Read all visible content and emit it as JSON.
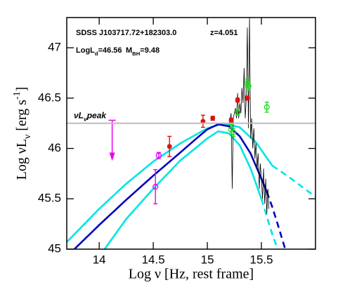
{
  "chart_data": {
    "type": "line",
    "xlabel": "Log ν [Hz, rest frame]",
    "ylabel": [
      "Log νL",
      "ν",
      " [erg s",
      "-1",
      "]"
    ],
    "annotations": [
      [
        "SDSS J103717.72+182303.0"
      ],
      [
        "z=4.051"
      ],
      [
        "LogL",
        "d",
        "=46.56"
      ],
      [
        "M",
        "BH",
        "=9.48"
      ]
    ],
    "reference_line": {
      "value": 46.25,
      "label": [
        "νL",
        "ν",
        "peak"
      ],
      "color": "#bbbbbb"
    },
    "xlim": [
      13.7,
      16.0
    ],
    "ylim": [
      45,
      47.3
    ],
    "xticks": [
      14,
      14.5,
      15,
      15.5
    ],
    "yticks": [
      45,
      45.5,
      46,
      46.5,
      47
    ],
    "series": [
      {
        "kind": "line",
        "color": "#00e5e5",
        "style": "solid",
        "x": [
          13.7,
          14.0,
          14.25,
          14.5,
          14.75,
          15.0,
          15.15,
          15.3,
          15.45,
          15.6
        ],
        "values": [
          45.07,
          45.4,
          45.65,
          45.87,
          46.05,
          46.2,
          46.25,
          46.21,
          46.06,
          45.83
        ]
      },
      {
        "kind": "line",
        "color": "#00e5e5",
        "style": "dashed",
        "x": [
          15.6,
          15.75,
          15.9,
          16.0
        ],
        "values": [
          45.83,
          45.72,
          45.6,
          45.52
        ]
      },
      {
        "kind": "line",
        "color": "#00e5e5",
        "style": "solid",
        "x": [
          14.05,
          14.25,
          14.5,
          14.75,
          15.0,
          15.1,
          15.2,
          15.3,
          15.4,
          15.5
        ],
        "values": [
          45.0,
          45.3,
          45.6,
          45.88,
          46.1,
          46.17,
          46.15,
          46.03,
          45.8,
          45.5
        ]
      },
      {
        "kind": "line",
        "color": "#00e5e5",
        "style": "dashed",
        "x": [
          15.5,
          15.6,
          15.65
        ],
        "values": [
          45.5,
          45.15,
          45.0
        ]
      },
      {
        "kind": "line",
        "color": "#0000bb",
        "style": "solid",
        "x": [
          13.77,
          14.0,
          14.25,
          14.5,
          14.75,
          14.9,
          15.0,
          15.1,
          15.2,
          15.3,
          15.4,
          15.5,
          15.55
        ],
        "values": [
          45.0,
          45.24,
          45.49,
          45.73,
          45.96,
          46.1,
          46.19,
          46.24,
          46.22,
          46.12,
          45.95,
          45.7,
          45.57
        ]
      },
      {
        "kind": "line",
        "color": "#0000bb",
        "style": "dashed",
        "x": [
          15.55,
          15.6,
          15.65,
          15.72
        ],
        "values": [
          45.57,
          45.42,
          45.25,
          45.0
        ]
      },
      {
        "kind": "line",
        "color": "#000000",
        "style": "thin",
        "x": [
          15.2,
          15.22,
          15.23,
          15.24,
          15.26,
          15.27,
          15.28,
          15.29,
          15.3,
          15.31,
          15.32,
          15.33,
          15.34,
          15.35,
          15.36,
          15.37,
          15.38,
          15.39,
          15.4,
          15.41,
          15.42,
          15.43,
          15.44,
          15.45,
          15.46,
          15.47,
          15.48,
          15.49,
          15.5,
          15.51,
          15.52,
          15.53,
          15.54,
          15.55,
          15.56,
          15.57
        ],
        "values": [
          46.2,
          46.35,
          45.6,
          46.3,
          46.4,
          46.3,
          46.55,
          46.3,
          46.45,
          46.35,
          46.6,
          46.45,
          46.8,
          46.3,
          46.5,
          47.2,
          46.2,
          47.3,
          46.1,
          46.3,
          46.0,
          46.2,
          45.9,
          46.05,
          45.8,
          45.95,
          45.6,
          45.85,
          45.7,
          45.5,
          45.8,
          45.45,
          45.7,
          45.35,
          45.6,
          45.4
        ]
      },
      {
        "kind": "points",
        "marker": "open",
        "color": "#ee00ee",
        "x": [
          14.52,
          14.55
        ],
        "values": [
          45.62,
          45.93
        ],
        "errors": [
          0.17,
          0.03
        ]
      },
      {
        "kind": "points",
        "marker": "filled",
        "color": "#dd1111",
        "x": [
          14.65,
          14.96,
          15.05,
          15.22,
          15.28,
          15.37
        ],
        "values": [
          46.02,
          46.27,
          46.3,
          46.28,
          46.48,
          46.5
        ],
        "errors": [
          0.1,
          0.06,
          0.02,
          0.02,
          0.02,
          0.02
        ]
      },
      {
        "kind": "points",
        "marker": "open",
        "color": "#22dd22",
        "x": [
          15.22,
          15.24,
          15.28,
          15.37,
          15.38,
          15.55
        ],
        "values": [
          46.19,
          46.16,
          46.36,
          46.65,
          46.62,
          46.41
        ],
        "errors": [
          0.05,
          0.04,
          0.03,
          0.04,
          0.04,
          0.05
        ]
      },
      {
        "kind": "upper_limit",
        "color": "#ee00ee",
        "x": [
          14.12
        ],
        "values": [
          46.28
        ]
      }
    ]
  }
}
